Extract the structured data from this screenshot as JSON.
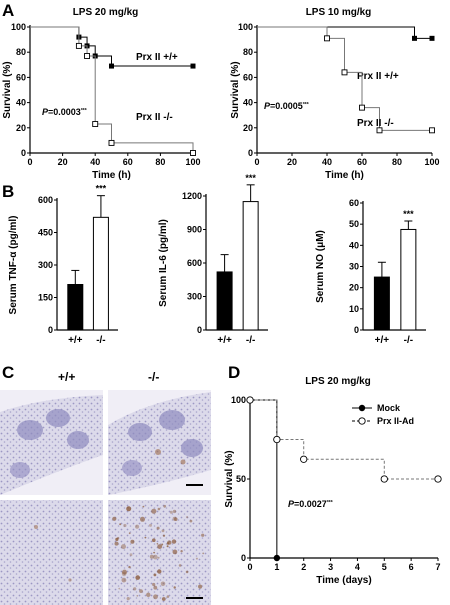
{
  "panels": {
    "A": "A",
    "B": "B",
    "C": "C",
    "D": "D"
  },
  "chart_data": [
    {
      "id": "A1",
      "type": "line",
      "title": "LPS 20 mg/kg",
      "xlabel": "Time (h)",
      "ylabel": "Survival (%)",
      "xlim": [
        0,
        100
      ],
      "ylim": [
        0,
        100
      ],
      "xticks": [
        0,
        20,
        40,
        60,
        80,
        100
      ],
      "yticks": [
        0,
        20,
        40,
        60,
        80,
        100
      ],
      "step": true,
      "series": [
        {
          "name": "Prx II +/+",
          "marker": "square-filled",
          "x": [
            0,
            30,
            35,
            40,
            50,
            100
          ],
          "y": [
            100,
            92,
            85,
            77,
            69,
            69
          ]
        },
        {
          "name": "Prx II  -/-",
          "marker": "square-open",
          "x": [
            0,
            30,
            35,
            40,
            50,
            100
          ],
          "y": [
            100,
            85,
            77,
            23,
            8,
            0
          ]
        }
      ],
      "annotation": {
        "italic": "P",
        "text": "=0.0003",
        "stars": "***"
      }
    },
    {
      "id": "A2",
      "type": "line",
      "title": "LPS 10 mg/kg",
      "xlabel": "Time (h)",
      "ylabel": "Survival (%)",
      "xlim": [
        0,
        100
      ],
      "ylim": [
        0,
        100
      ],
      "xticks": [
        0,
        20,
        40,
        60,
        80,
        100
      ],
      "yticks": [
        0,
        20,
        40,
        60,
        80,
        100
      ],
      "step": true,
      "series": [
        {
          "name": "Prx II +/+",
          "marker": "square-filled",
          "x": [
            0,
            90,
            100
          ],
          "y": [
            100,
            91,
            91
          ]
        },
        {
          "name": "Prx II  -/-",
          "marker": "square-open",
          "x": [
            0,
            40,
            50,
            60,
            70,
            100
          ],
          "y": [
            100,
            91,
            64,
            36,
            18,
            18
          ]
        }
      ],
      "annotation": {
        "italic": "P",
        "text": "=0.0005",
        "stars": "***"
      }
    },
    {
      "id": "B1",
      "type": "bar",
      "ylabel": "Serum TNF-α (pg/ml)",
      "categories": [
        "+/+",
        "-/-"
      ],
      "values": [
        210,
        520
      ],
      "errors": [
        65,
        100
      ],
      "fills": [
        "#000000",
        "#ffffff"
      ],
      "ylim": [
        0,
        600
      ],
      "yticks": [
        0,
        150,
        300,
        450,
        600
      ],
      "significance": "***"
    },
    {
      "id": "B2",
      "type": "bar",
      "ylabel": "Serum IL-6 (pg/ml)",
      "categories": [
        "+/+",
        "-/-"
      ],
      "values": [
        520,
        1150
      ],
      "errors": [
        155,
        150
      ],
      "fills": [
        "#000000",
        "#ffffff"
      ],
      "ylim": [
        0,
        1200
      ],
      "yticks": [
        0,
        300,
        600,
        900,
        1200
      ],
      "significance": "***"
    },
    {
      "id": "B3",
      "type": "bar",
      "ylabel": "Serum NO (μM)",
      "categories": [
        "+/+",
        "-/-"
      ],
      "values": [
        25,
        47.5
      ],
      "errors": [
        7,
        4
      ],
      "fills": [
        "#000000",
        "#ffffff"
      ],
      "ylim": [
        0,
        60
      ],
      "yticks": [
        0,
        10,
        20,
        30,
        40,
        50,
        60
      ],
      "significance": "***"
    },
    {
      "id": "D",
      "type": "line",
      "title": "LPS 20 mg/kg",
      "xlabel": "Time (days)",
      "ylabel": "Survival (%)",
      "xlim": [
        0,
        7
      ],
      "ylim": [
        0,
        100
      ],
      "xticks": [
        0,
        1,
        2,
        3,
        4,
        5,
        6,
        7
      ],
      "yticks": [
        0,
        50,
        100
      ],
      "step": true,
      "series": [
        {
          "name": "Mock",
          "marker": "circle-filled",
          "dash": false,
          "x": [
            0,
            1
          ],
          "y": [
            100,
            0
          ]
        },
        {
          "name": "Prx II-Ad",
          "marker": "circle-open",
          "dash": true,
          "x": [
            0,
            1,
            2,
            5,
            7
          ],
          "y": [
            100,
            75,
            62.5,
            50,
            50
          ]
        }
      ],
      "annotation": {
        "italic": "P",
        "text": "=0.0027",
        "stars": "***"
      }
    }
  ],
  "micrographs": {
    "columns": [
      "+/+",
      "-/-"
    ],
    "tissue_color": "#b7b4d6",
    "stain_color": "#8a5a3a"
  }
}
